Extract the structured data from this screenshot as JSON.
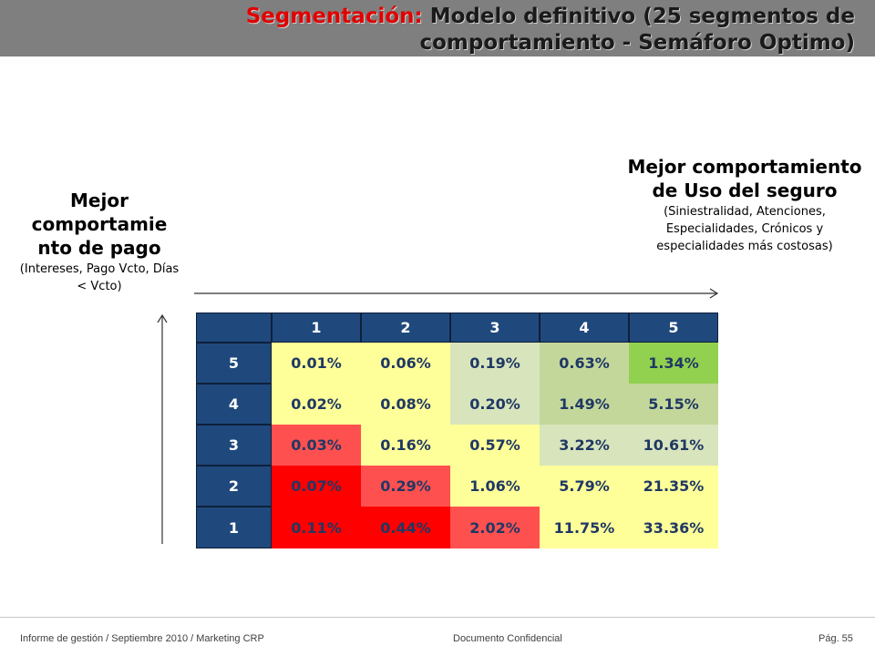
{
  "title": {
    "accent": "Segmentación:",
    "text": " Modelo definitivo (25 segmentos de comportamiento - Semáforo Optimo)"
  },
  "left_label": {
    "heading": "Mejor comportamie nto de pago",
    "sub": "(Intereses, Pago Vcto, Días < Vcto)"
  },
  "right_label": {
    "heading": "Mejor comportamiento de Uso del seguro",
    "sub": "(Siniestralidad, Atenciones, Especialidades, Crónicos y especialidades más costosas)"
  },
  "chart_data": {
    "type": "heatmap",
    "x_categories": [
      "1",
      "2",
      "3",
      "4",
      "5"
    ],
    "y_categories": [
      "5",
      "4",
      "3",
      "2",
      "1"
    ],
    "values": [
      [
        "0.01%",
        "0.06%",
        "0.19%",
        "0.63%",
        "1.34%"
      ],
      [
        "0.02%",
        "0.08%",
        "0.20%",
        "1.49%",
        "5.15%"
      ],
      [
        "0.03%",
        "0.16%",
        "0.57%",
        "3.22%",
        "10.61%"
      ],
      [
        "0.07%",
        "0.29%",
        "1.06%",
        "5.79%",
        "21.35%"
      ],
      [
        "0.11%",
        "0.44%",
        "2.02%",
        "11.75%",
        "33.36%"
      ]
    ],
    "cell_colors": [
      [
        "#ffff99",
        "#ffff99",
        "#d8e4bc",
        "#c4d79b",
        "#92d050"
      ],
      [
        "#ffff99",
        "#ffff99",
        "#d8e4bc",
        "#c4d79b",
        "#c4d79b"
      ],
      [
        "#ff5050",
        "#ffff99",
        "#ffff99",
        "#d8e4bc",
        "#d8e4bc"
      ],
      [
        "#ff0000",
        "#ff5050",
        "#ffff99",
        "#ffff99",
        "#ffff99"
      ],
      [
        "#ff0000",
        "#ff0000",
        "#ff5050",
        "#ffff99",
        "#ffff99"
      ]
    ],
    "header_color": "#1f497d"
  },
  "footer": {
    "left": "Informe de gestión / Septiembre 2010 / Marketing CRP",
    "center": "Documento Confidencial",
    "right": "Pág. 55"
  }
}
